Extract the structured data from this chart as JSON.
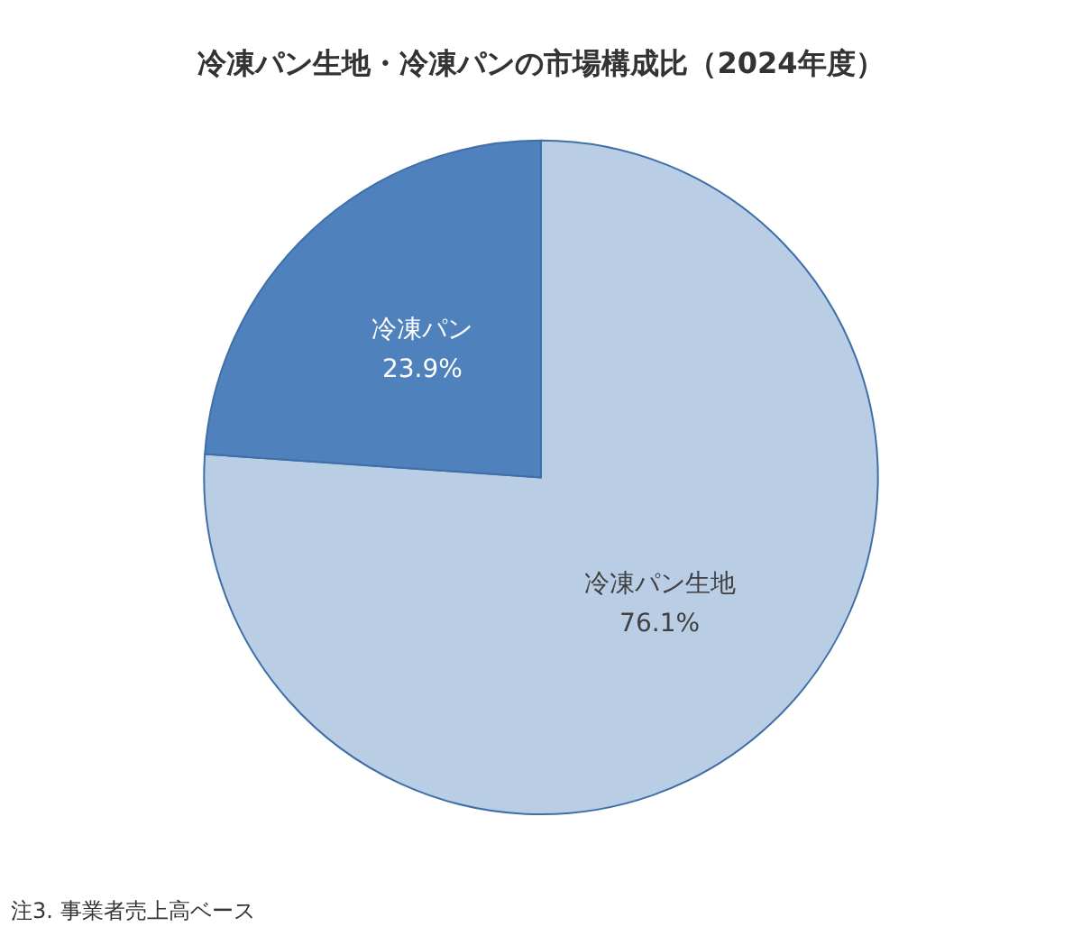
{
  "chart_data": {
    "type": "pie",
    "title": "冷凍パン生地・冷凍パンの市場構成比（2024年度）",
    "categories": [
      "冷凍パン生地",
      "冷凍パン"
    ],
    "values": [
      76.1,
      23.9
    ],
    "value_labels": [
      "76.1%",
      "23.9%"
    ],
    "colors": [
      "#b9cde5",
      "#4f81bd"
    ],
    "legend": false,
    "annotations": [
      "注3. 事業者売上高ベース"
    ]
  }
}
